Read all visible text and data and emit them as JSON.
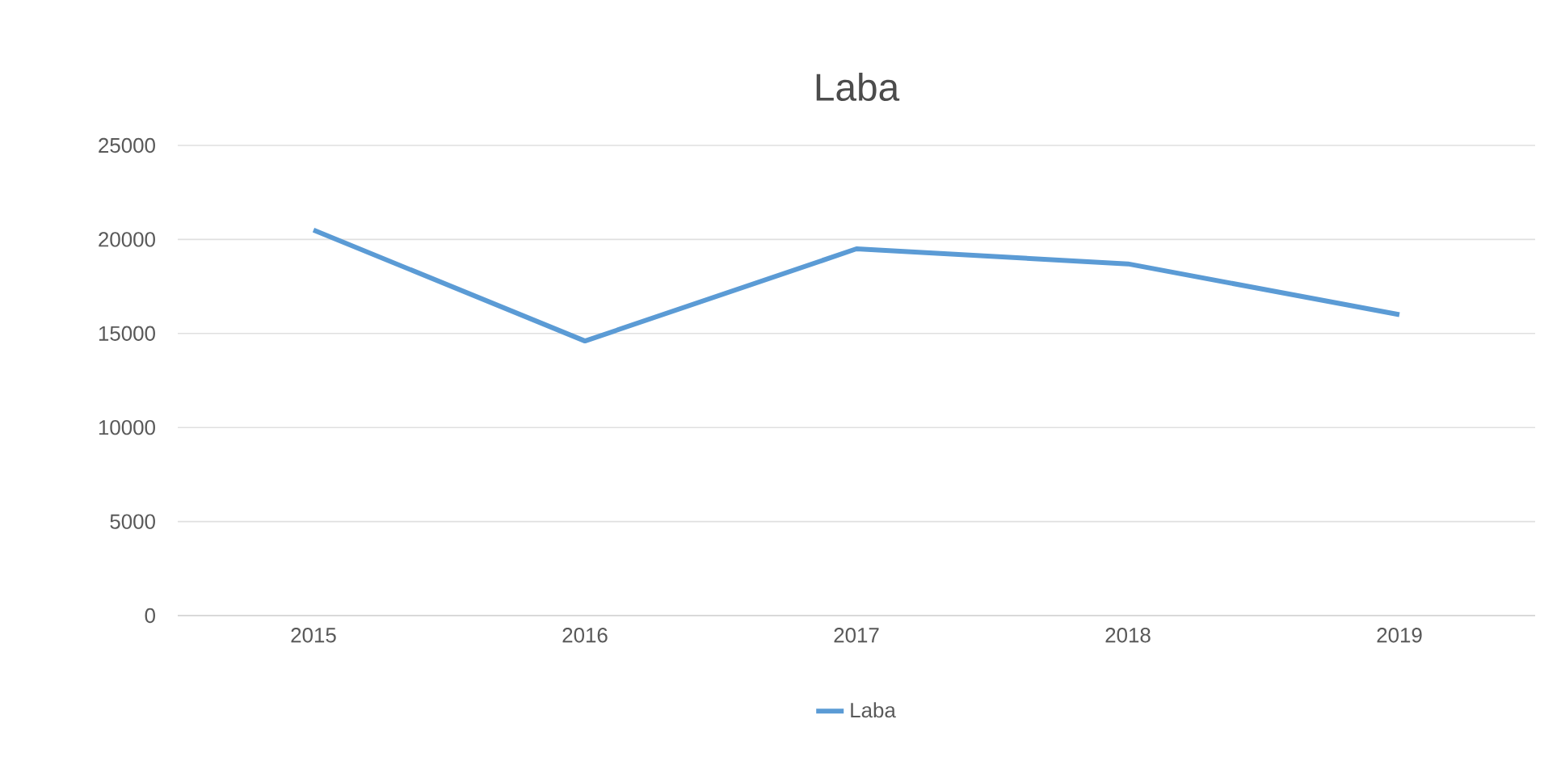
{
  "chart_data": {
    "type": "line",
    "title": "Laba",
    "categories": [
      "2015",
      "2016",
      "2017",
      "2018",
      "2019"
    ],
    "series": [
      {
        "name": "Laba",
        "color": "#5b9bd5",
        "values": [
          20500,
          14600,
          19500,
          18700,
          16000
        ]
      }
    ],
    "ylim": [
      0,
      25000
    ],
    "yticks": [
      0,
      5000,
      10000,
      15000,
      20000,
      25000
    ],
    "grid": "y",
    "legend": "bottom",
    "marker": "none",
    "line_style": "solid"
  }
}
